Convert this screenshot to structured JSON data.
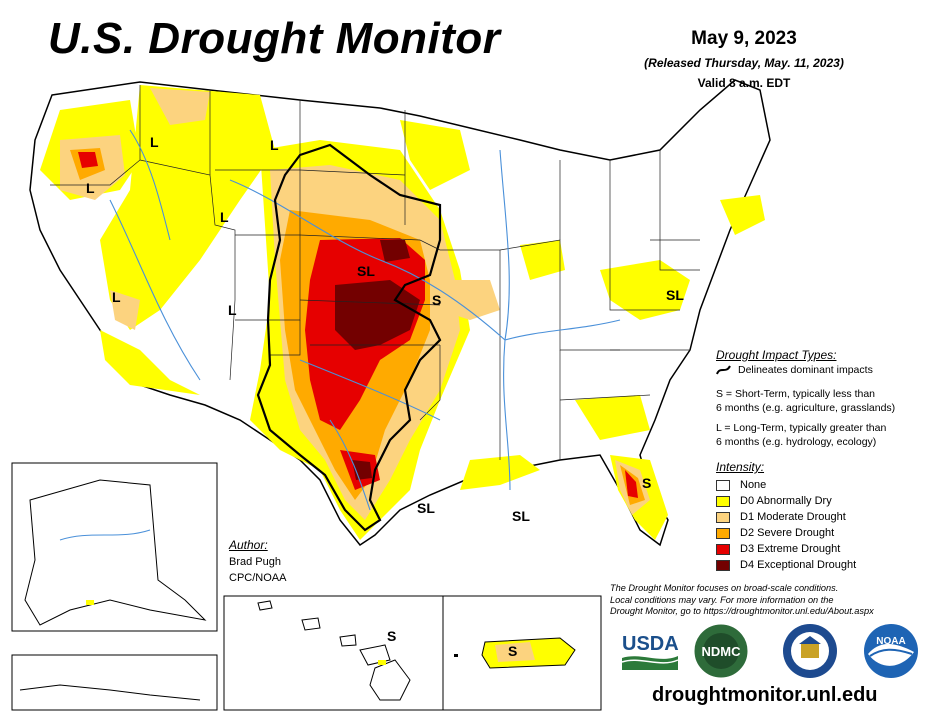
{
  "header": {
    "title": "U.S. Drought Monitor",
    "date": "May 9, 2023",
    "released": "(Released Thursday, May. 11, 2023)",
    "valid": "Valid 8 a.m. EDT"
  },
  "impact_types": {
    "title": "Drought Impact Types:",
    "delineates": "Delineates dominant impacts",
    "short_term_1": "S = Short-Term, typically less than",
    "short_term_2": "6 months (e.g. agriculture, grasslands)",
    "long_term_1": "L = Long-Term, typically greater than",
    "long_term_2": "6 months (e.g. hydrology, ecology)"
  },
  "intensity": {
    "title": "Intensity:",
    "levels": [
      {
        "label": "None",
        "color": "#ffffff"
      },
      {
        "label": "D0 Abnormally Dry",
        "color": "#ffff00"
      },
      {
        "label": "D1 Moderate Drought",
        "color": "#fcd37f"
      },
      {
        "label": "D2 Severe Drought",
        "color": "#ffaa00"
      },
      {
        "label": "D3 Extreme Drought",
        "color": "#e60000"
      },
      {
        "label": "D4 Exceptional Drought",
        "color": "#730000"
      }
    ]
  },
  "author": {
    "label": "Author:",
    "name": "Brad Pugh",
    "org": "CPC/NOAA"
  },
  "disclaimer": {
    "line1": "The Drought Monitor focuses on broad-scale conditions.",
    "line2": "Local conditions may vary. For more information on the",
    "line3": "Drought Monitor, go to https://droughtmonitor.unl.edu/About.aspx"
  },
  "website": "droughtmonitor.unl.edu",
  "map_labels": {
    "l_oregon": "L",
    "l_idaho_north": "L",
    "l_montana": "L",
    "l_wyoming": "L",
    "l_nevada": "L",
    "l_arizona": "L",
    "sl_kansas": "SL",
    "s_missouri": "S",
    "sl_virginia": "SL",
    "s_florida": "S",
    "sl_texas": "SL",
    "sl_gulf": "SL",
    "s_hawaii": "S",
    "s_puerto_rico": "S"
  },
  "logos": {
    "usda": "USDA",
    "ndmc": "NDMC",
    "commerce": "commerce-seal-icon",
    "noaa": "NOAA"
  }
}
